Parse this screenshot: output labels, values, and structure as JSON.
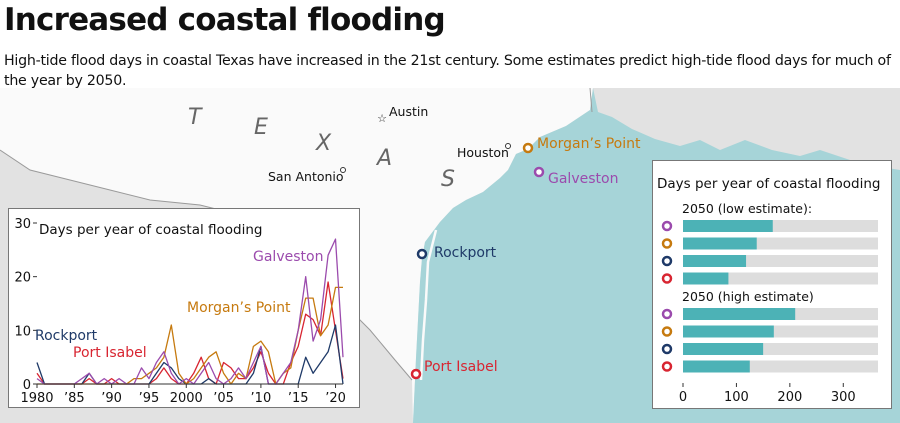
{
  "header": {
    "title": "Increased coastal flooding",
    "subtitle": "High-tide flood days in coastal Texas have increased in the 21st century. Some estimates predict high-tide flood days for much of the year by 2050."
  },
  "map": {
    "state_letters": [
      "T",
      "E",
      "X",
      "A",
      "S"
    ],
    "cities": [
      "Austin",
      "Houston",
      "San Antonio"
    ],
    "stations": [
      {
        "name": "Morgan’s Point",
        "color": "#c67a0f"
      },
      {
        "name": "Galveston",
        "color": "#9b4bad"
      },
      {
        "name": "Rockport",
        "color": "#1f3a68"
      },
      {
        "name": "Port Isabel",
        "color": "#d82531"
      }
    ]
  },
  "chart_data": [
    {
      "type": "line",
      "title": "Days per year of coastal flooding",
      "x": [
        1980,
        1981,
        1982,
        1983,
        1984,
        1985,
        1986,
        1987,
        1988,
        1989,
        1990,
        1991,
        1992,
        1993,
        1994,
        1995,
        1996,
        1997,
        1998,
        1999,
        2000,
        2001,
        2002,
        2003,
        2004,
        2005,
        2006,
        2007,
        2008,
        2009,
        2010,
        2011,
        2012,
        2013,
        2014,
        2015,
        2016,
        2017,
        2018,
        2019,
        2020,
        2021
      ],
      "xticks": [
        1980,
        1985,
        1990,
        1995,
        2000,
        2005,
        2010,
        2015,
        2020
      ],
      "xtick_labels": [
        "1980",
        "’85",
        "’90",
        "’95",
        "2000",
        "’05",
        "’10",
        "’15",
        "’20"
      ],
      "ylim": [
        0,
        30
      ],
      "yticks": [
        0,
        10,
        20,
        30
      ],
      "series": [
        {
          "name": "Galveston",
          "color": "#9b4bad",
          "values": [
            1,
            0,
            0,
            0,
            0,
            0,
            1,
            2,
            0,
            1,
            0,
            1,
            0,
            0,
            3,
            1,
            4,
            6,
            2,
            0,
            1,
            0,
            2,
            4,
            1,
            0,
            1,
            3,
            1,
            4,
            7,
            0,
            0,
            2,
            4,
            10,
            20,
            8,
            12,
            24,
            27,
            5
          ]
        },
        {
          "name": "Morgan’s Point",
          "color": "#c67a0f",
          "values": [
            0,
            0,
            0,
            0,
            0,
            0,
            0,
            0,
            0,
            0,
            0,
            0,
            0,
            1,
            1,
            2,
            3,
            5,
            11,
            2,
            0,
            1,
            3,
            5,
            6,
            2,
            0,
            2,
            1,
            7,
            8,
            6,
            0,
            2,
            3,
            10,
            16,
            16,
            9,
            11,
            18,
            18
          ]
        },
        {
          "name": "Rockport",
          "color": "#1f3a68",
          "values": [
            4,
            0,
            0,
            0,
            0,
            0,
            0,
            2,
            0,
            0,
            0,
            0,
            0,
            0,
            0,
            0,
            2,
            4,
            3,
            1,
            0,
            0,
            0,
            1,
            0,
            0,
            0,
            0,
            0,
            2,
            7,
            0,
            0,
            0,
            0,
            0,
            5,
            2,
            4,
            6,
            11,
            0
          ]
        },
        {
          "name": "Port Isabel",
          "color": "#d82531",
          "values": [
            2,
            0,
            0,
            0,
            0,
            0,
            0,
            1,
            0,
            0,
            1,
            0,
            0,
            0,
            0,
            0,
            1,
            3,
            1,
            0,
            0,
            2,
            5,
            1,
            0,
            4,
            3,
            1,
            1,
            3,
            6,
            2,
            0,
            0,
            4,
            7,
            13,
            12,
            9,
            19,
            10,
            1
          ]
        }
      ],
      "labels": [
        "Galveston",
        "Morgan’s Point",
        "Rockport",
        "Port Isabel"
      ]
    },
    {
      "type": "bar",
      "title": "Days per year of coastal flooding",
      "xlim": [
        0,
        365
      ],
      "xticks": [
        0,
        100,
        200,
        300
      ],
      "groups": [
        {
          "name": "2050 (low estimate):",
          "categories": [
            "Galveston",
            "Morgan’s Point",
            "Rockport",
            "Port Isabel"
          ],
          "values": [
            168,
            138,
            118,
            85
          ]
        },
        {
          "name": "2050 (high estimate)",
          "categories": [
            "Galveston",
            "Morgan’s Point",
            "Rockport",
            "Port Isabel"
          ],
          "values": [
            210,
            170,
            150,
            125
          ]
        }
      ]
    }
  ],
  "colors": {
    "water": "#a6d4d8",
    "land": "#e2e2e2",
    "texas": "#fafafa",
    "bar": "#4cb2b6",
    "track": "#dddddd"
  }
}
